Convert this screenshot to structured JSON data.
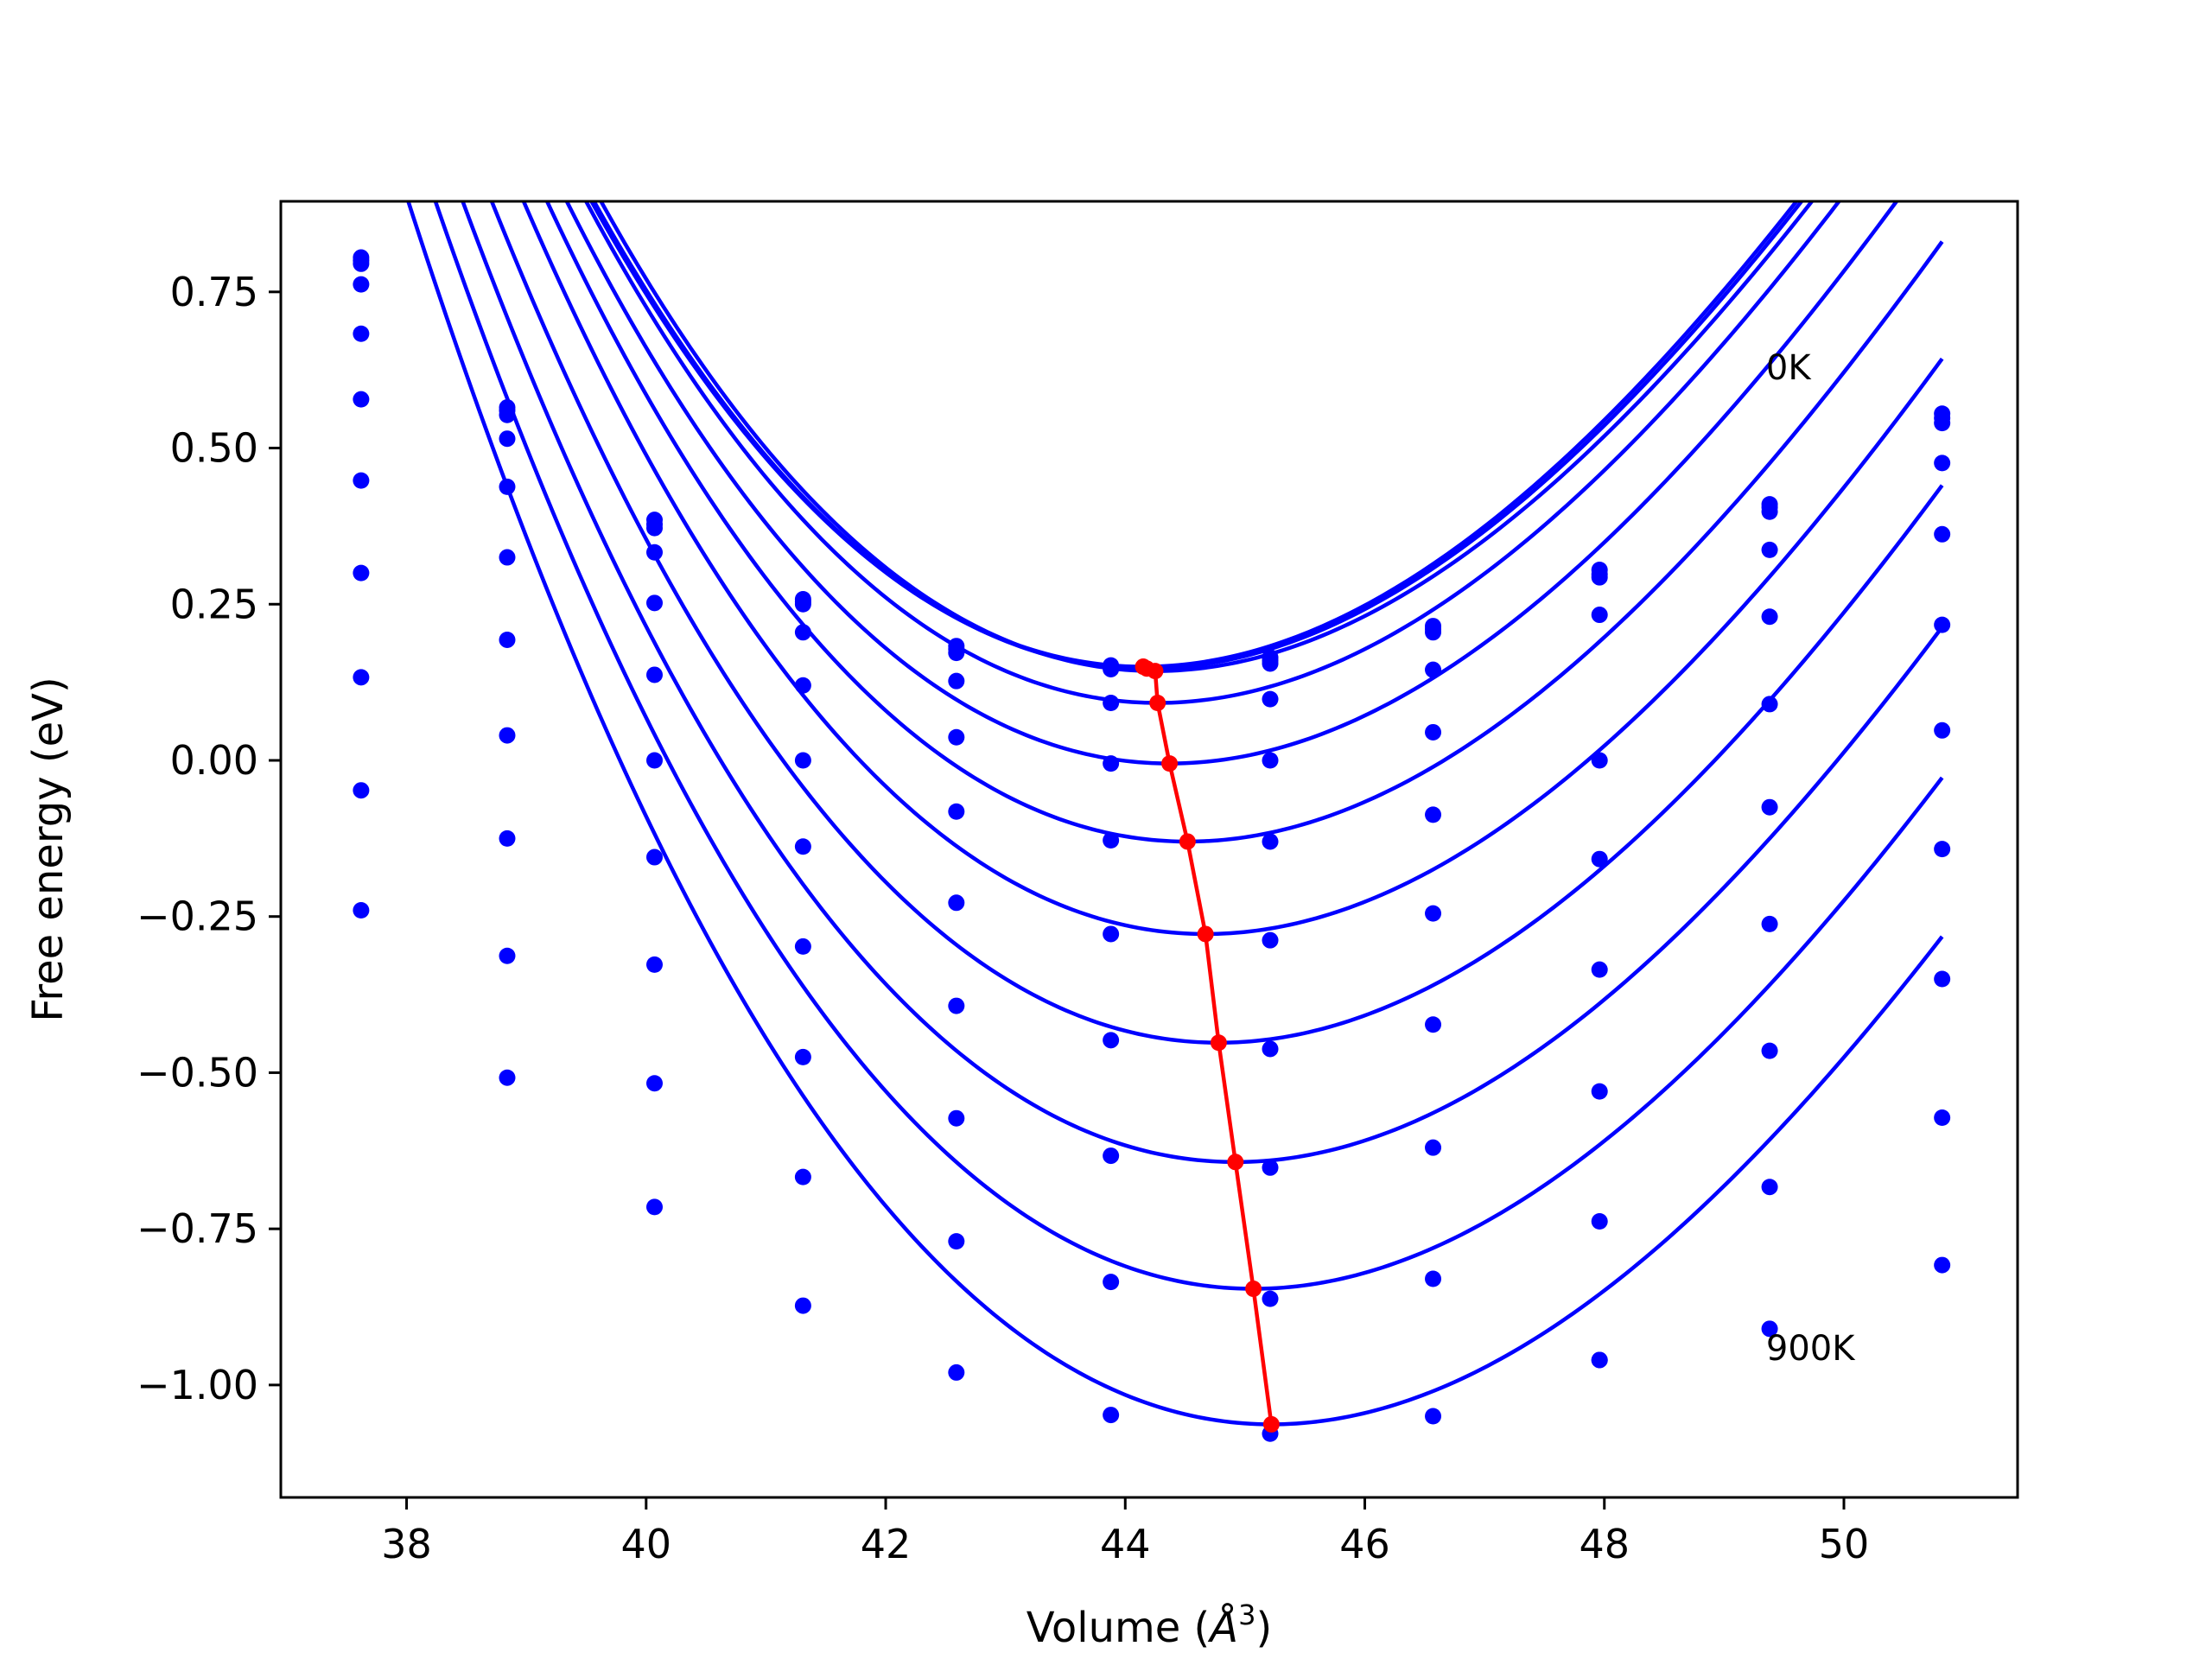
{
  "chart_data": {
    "type": "line",
    "title": "",
    "xlabel": "Volume (",
    "xlabel_symbol": "Å",
    "xlabel_exp": "3",
    "xlabel_close": ")",
    "ylabel": "Free energy (eV)",
    "xlim": [
      36.95,
      51.45
    ],
    "ylim": [
      -1.18,
      0.895
    ],
    "grid": false,
    "legend": "none",
    "x_ticks": [
      38,
      40,
      42,
      44,
      46,
      48,
      50
    ],
    "y_ticks": [
      0.75,
      0.5,
      0.25,
      0.0,
      -0.25,
      -0.5,
      -0.75,
      -1.0
    ],
    "y_tick_labels": [
      "0.75",
      "0.50",
      "0.25",
      "0.00",
      "−0.25",
      "−0.50",
      "−0.75",
      "−1.00"
    ],
    "colors": {
      "curves": "#0000ff",
      "points": "#0000ff",
      "minima": "#ff0000",
      "axes": "#000000"
    },
    "annotations": [
      {
        "text": "0K",
        "x": 49.35,
        "y": 0.61
      },
      {
        "text": "900K",
        "x": 49.35,
        "y": -0.96
      }
    ],
    "volumes": [
      37.62,
      38.84,
      40.07,
      41.31,
      42.59,
      43.88,
      45.21,
      46.57,
      47.96,
      49.38,
      50.82
    ],
    "series": [
      {
        "temperature_rank": 0,
        "v0": 44.15,
        "e0": 0.15,
        "a": 0.0305,
        "b": -0.001,
        "points": [
          0.805,
          0.565,
          0.385,
          0.258,
          0.183,
          0.152,
          0.165,
          0.215,
          0.305,
          0.41,
          0.555
        ]
      },
      {
        "temperature_rank": 1,
        "v0": 44.18,
        "e0": 0.147,
        "a": 0.0305,
        "b": -0.001,
        "points": [
          0.8,
          0.56,
          0.378,
          0.254,
          0.178,
          0.15,
          0.16,
          0.21,
          0.298,
          0.405,
          0.548
        ]
      },
      {
        "temperature_rank": 2,
        "v0": 44.25,
        "e0": 0.143,
        "a": 0.0305,
        "b": -0.001,
        "points": [
          0.795,
          0.553,
          0.372,
          0.25,
          0.172,
          0.146,
          0.155,
          0.205,
          0.293,
          0.398,
          0.54
        ]
      },
      {
        "temperature_rank": 3,
        "v0": 44.27,
        "e0": 0.092,
        "a": 0.0305,
        "b": -0.001,
        "points": [
          0.762,
          0.515,
          0.333,
          0.205,
          0.127,
          0.092,
          0.098,
          0.145,
          0.233,
          0.337,
          0.476
        ]
      },
      {
        "temperature_rank": 4,
        "v0": 44.37,
        "e0": -0.005,
        "a": 0.0305,
        "b": -0.001,
        "points": [
          0.683,
          0.438,
          0.252,
          0.12,
          0.037,
          -0.005,
          0.0,
          0.045,
          0.0,
          0.23,
          0.362
        ]
      },
      {
        "temperature_rank": 5,
        "v0": 44.52,
        "e0": -0.13,
        "a": 0.0305,
        "b": -0.001,
        "points": [
          0.578,
          0.325,
          0.137,
          0.0,
          -0.082,
          -0.128,
          -0.13,
          -0.087,
          -0.158,
          0.09,
          0.217
        ]
      },
      {
        "temperature_rank": 6,
        "v0": 44.67,
        "e0": -0.278,
        "a": 0.0305,
        "b": -0.001,
        "points": [
          0.448,
          0.193,
          0.0,
          -0.138,
          -0.228,
          -0.278,
          -0.288,
          -0.245,
          -0.335,
          -0.075,
          0.048
        ]
      },
      {
        "temperature_rank": 7,
        "v0": 44.78,
        "e0": -0.452,
        "a": 0.0305,
        "b": -0.001,
        "points": [
          0.3,
          0.04,
          -0.155,
          -0.298,
          -0.393,
          -0.448,
          -0.462,
          -0.423,
          -0.53,
          -0.262,
          -0.142
        ]
      },
      {
        "temperature_rank": 8,
        "v0": 44.92,
        "e0": -0.643,
        "a": 0.0305,
        "b": -0.001,
        "points": [
          0.133,
          -0.125,
          -0.327,
          -0.475,
          -0.573,
          -0.633,
          -0.652,
          -0.62,
          -0.738,
          -0.465,
          -0.35
        ]
      },
      {
        "temperature_rank": 9,
        "v0": 45.07,
        "e0": -0.846,
        "a": 0.0305,
        "b": -0.001,
        "points": [
          -0.048,
          -0.313,
          -0.517,
          -0.667,
          -0.77,
          -0.835,
          -0.862,
          -0.83,
          -0.96,
          -0.683,
          -0.572
        ]
      },
      {
        "temperature_rank": 10,
        "v0": 45.22,
        "e0": -1.063,
        "a": 0.0305,
        "b": -0.001,
        "points": [
          -0.24,
          -0.508,
          -0.715,
          -0.873,
          -0.98,
          -1.048,
          -1.078,
          -1.05,
          -0.96,
          -0.91,
          -0.808
        ]
      }
    ],
    "minima_line": {
      "x": [
        44.15,
        44.18,
        44.25,
        44.27,
        44.37,
        44.52,
        44.67,
        44.78,
        44.92,
        45.07,
        45.22
      ],
      "y": [
        0.15,
        0.147,
        0.143,
        0.092,
        -0.005,
        -0.13,
        -0.278,
        -0.452,
        -0.643,
        -0.846,
        -1.063
      ]
    }
  }
}
